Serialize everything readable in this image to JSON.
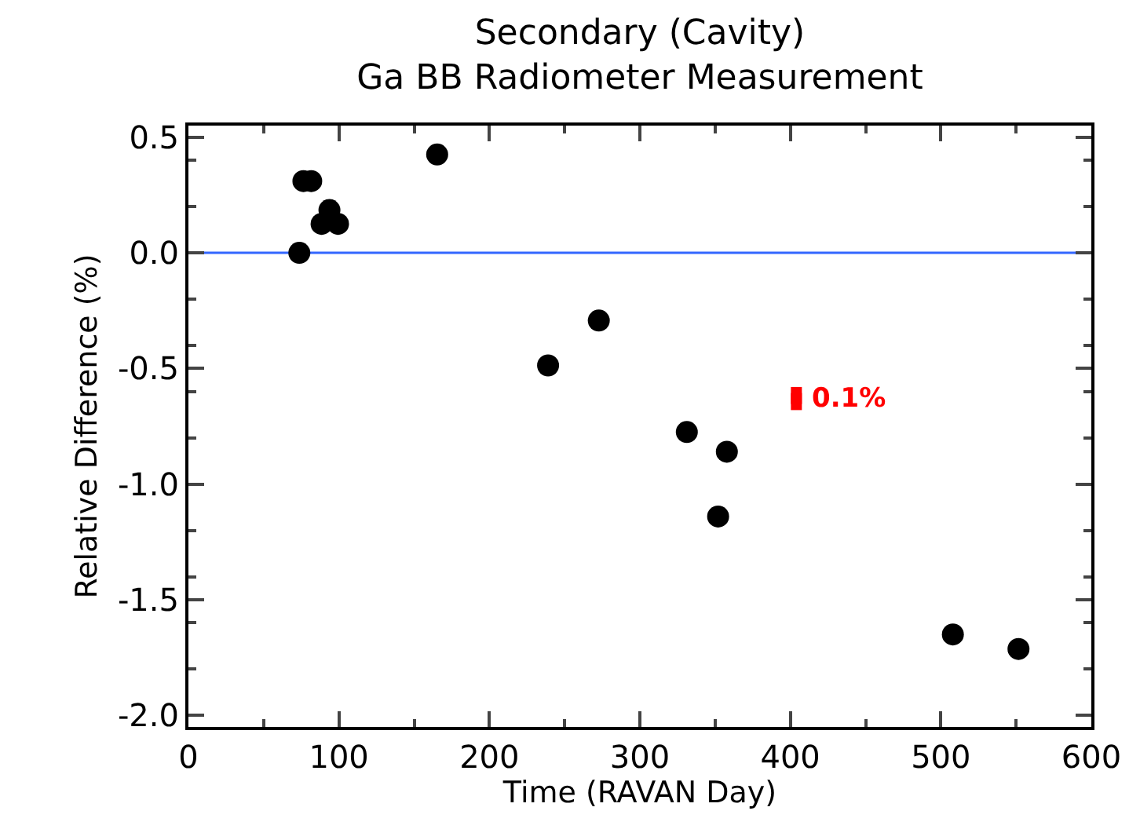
{
  "chart_data": {
    "type": "scatter",
    "title": "Secondary (Cavity)\nGa BB Radiometer Measurement",
    "xlabel": "Time (RAVAN Day)",
    "ylabel": "Relative Difference (%)",
    "series": [
      {
        "color": "#000000",
        "marker": "circle",
        "x": [
          73.7,
          76.4,
          81.6,
          88.5,
          93.7,
          99.4,
          165.3,
          239,
          272.7,
          331.2,
          352,
          357.8,
          508,
          551.6
        ],
        "values": [
          0.0,
          0.31,
          0.31,
          0.125,
          0.185,
          0.125,
          0.425,
          -0.487,
          -0.293,
          -0.775,
          -1.14,
          -0.86,
          -1.65,
          -1.713
        ]
      },
      {
        "color": "#ff0000",
        "marker": "square",
        "x": [
          404
        ],
        "values": [
          -0.63
        ],
        "errors": [
          0.05
        ]
      }
    ],
    "annotations": [
      "0.1%"
    ],
    "ref_lines": [
      {
        "axis": "y",
        "value": 0,
        "color": "#3366ff"
      }
    ],
    "xlim": [
      0,
      600
    ],
    "xticks": [
      0,
      100,
      200,
      300,
      400,
      500,
      600
    ],
    "ylim": [
      -2.05,
      0.55
    ],
    "yticks": [
      {
        "value": -2.0,
        "label": "-2.0"
      },
      {
        "value": -1.5,
        "label": "-1.5"
      },
      {
        "value": -1.0,
        "label": "-1.0"
      },
      {
        "value": -0.5,
        "label": "-0.5"
      },
      {
        "value": 0.0,
        "label": "0.0"
      },
      {
        "value": 0.5,
        "label": "0.5"
      }
    ],
    "grid": false
  }
}
